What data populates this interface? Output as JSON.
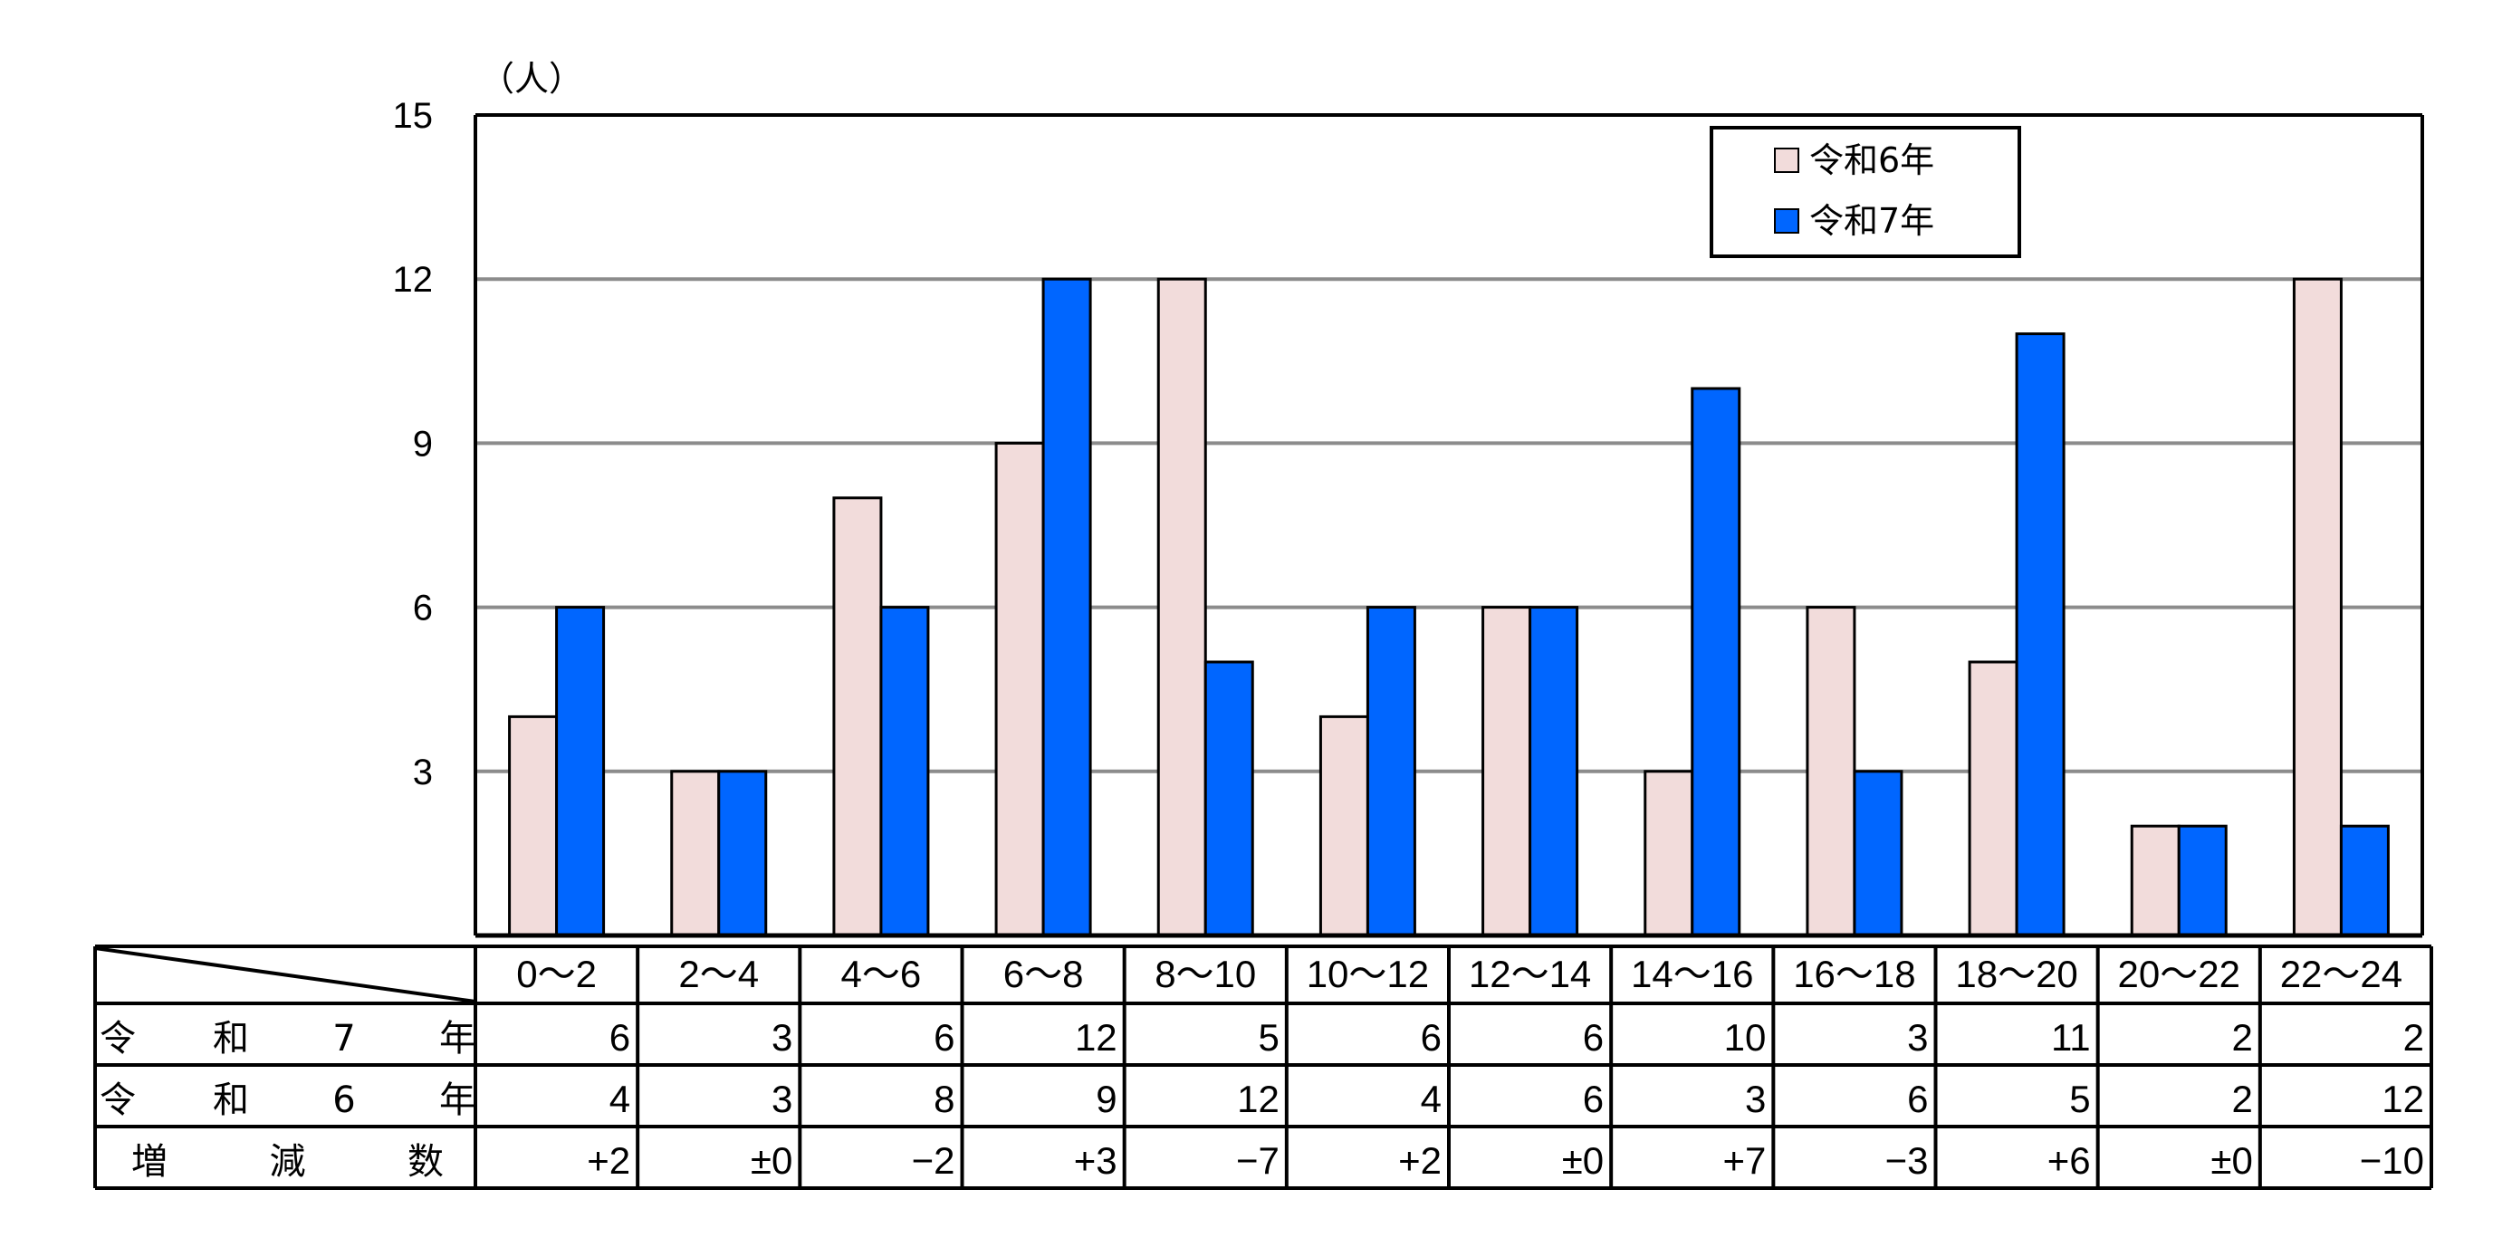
{
  "chart_data": {
    "type": "bar",
    "unit_label": "（人）",
    "ylim": [
      0,
      15
    ],
    "yticks": [
      "3",
      "6",
      "9",
      "12",
      "15"
    ],
    "grid": true,
    "legend_position": "top-right",
    "categories": [
      "0～2",
      "2～4",
      "4～6",
      "6～8",
      "8～10",
      "10～12",
      "12～14",
      "14～16",
      "16～18",
      "18～20",
      "20～22",
      "22～24"
    ],
    "series": [
      {
        "name": "令和6年",
        "color": "#f2dcdb",
        "values": [
          4,
          3,
          8,
          9,
          12,
          4,
          6,
          3,
          6,
          5,
          2,
          12
        ]
      },
      {
        "name": "令和7年",
        "color": "#0066ff",
        "values": [
          6,
          3,
          6,
          12,
          5,
          6,
          6,
          10,
          3,
          11,
          2,
          2
        ]
      }
    ],
    "table": {
      "rows": [
        {
          "label": [
            "令",
            "和",
            "7",
            "年"
          ],
          "values": [
            "6",
            "3",
            "6",
            "12",
            "5",
            "6",
            "6",
            "10",
            "3",
            "11",
            "2",
            "2"
          ]
        },
        {
          "label": [
            "令",
            "和",
            "6",
            "年"
          ],
          "values": [
            "4",
            "3",
            "8",
            "9",
            "12",
            "4",
            "6",
            "3",
            "6",
            "5",
            "2",
            "12"
          ]
        },
        {
          "label": [
            "増",
            "減",
            "数"
          ],
          "values": [
            "+2",
            "±0",
            "−2",
            "+3",
            "−7",
            "+2",
            "±0",
            "+7",
            "−3",
            "+6",
            "±0",
            "−10"
          ]
        }
      ]
    }
  }
}
